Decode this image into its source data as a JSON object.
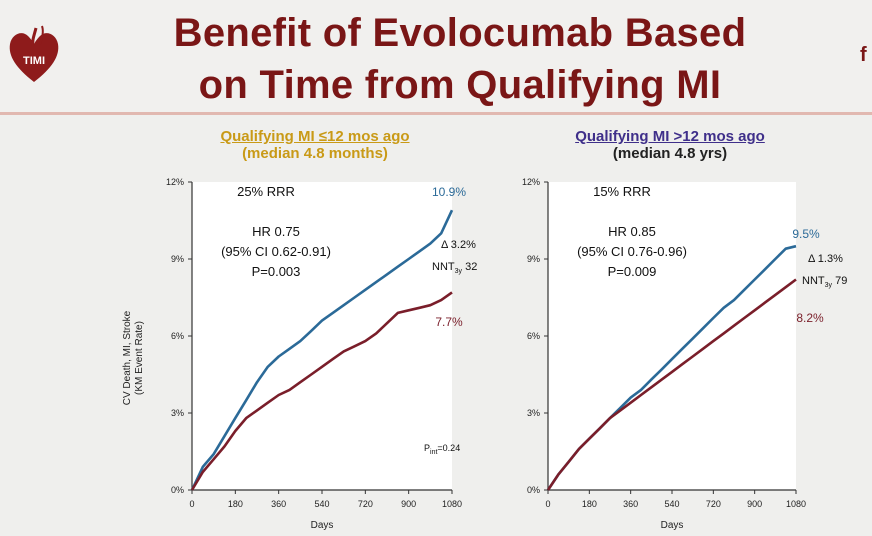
{
  "title": {
    "line1": "Benefit of Evolocumab Based",
    "line2": "on Time from Qualifying MI"
  },
  "logo": {
    "text": "TIMI",
    "icon": "timi-heart-logo"
  },
  "edge_letter": "f",
  "colors": {
    "title": "#7a1616",
    "left_header": "#c99a17",
    "right_header": "#3f2f8a",
    "evolocumab": "#2b6a98",
    "placebo": "#7a1e2a"
  },
  "panels": [
    {
      "header": "Qualifying MI ≤12 mos ago",
      "subheader": "(median 4.8 months)",
      "rrr": "25% RRR",
      "hr": "HR 0.75",
      "ci": "(95% CI 0.62-0.91)",
      "p": "P=0.003",
      "delta": "Δ 3.2%",
      "nnt": "NNT",
      "nnt_sub": "3y",
      "nnt_val": "32",
      "end_blue": "10.9%",
      "end_red": "7.7%",
      "pint_label": "P",
      "pint_sub": "int",
      "pint_val": "=0.24"
    },
    {
      "header": "Qualifying MI >12 mos ago",
      "subheader": "(median 4.8 yrs)",
      "rrr": "15% RRR",
      "hr": "HR 0.85",
      "ci": "(95% CI 0.76-0.96)",
      "p": "P=0.009",
      "delta": "Δ 1.3%",
      "nnt": "NNT",
      "nnt_sub": "3y",
      "nnt_val": "79",
      "end_blue": "9.5%",
      "end_red": "8.2%"
    }
  ],
  "chart_data": [
    {
      "type": "line",
      "xlabel": "Days",
      "ylabel": "CV Death, MI, Stroke (KM Event Rate)",
      "xlim": [
        0,
        1080
      ],
      "ylim": [
        0,
        12
      ],
      "xticks": [
        "0",
        "180",
        "360",
        "540",
        "720",
        "900",
        "1080"
      ],
      "yticks": [
        "0%",
        "3%",
        "6%",
        "9%",
        "12%"
      ],
      "series": [
        {
          "color": "#2b6a98",
          "x": [
            0,
            45,
            90,
            135,
            180,
            225,
            270,
            315,
            360,
            405,
            450,
            495,
            540,
            585,
            630,
            675,
            720,
            765,
            810,
            855,
            900,
            945,
            990,
            1035,
            1080
          ],
          "y": [
            0,
            0.9,
            1.4,
            2.1,
            2.8,
            3.5,
            4.2,
            4.8,
            5.2,
            5.5,
            5.8,
            6.2,
            6.6,
            6.9,
            7.2,
            7.5,
            7.8,
            8.1,
            8.4,
            8.7,
            9.0,
            9.3,
            9.6,
            10.0,
            10.9
          ]
        },
        {
          "color": "#7a1e2a",
          "x": [
            0,
            45,
            90,
            135,
            180,
            225,
            270,
            315,
            360,
            405,
            450,
            495,
            540,
            585,
            630,
            675,
            720,
            765,
            810,
            855,
            900,
            945,
            990,
            1035,
            1080
          ],
          "y": [
            0,
            0.7,
            1.2,
            1.7,
            2.3,
            2.8,
            3.1,
            3.4,
            3.7,
            3.9,
            4.2,
            4.5,
            4.8,
            5.1,
            5.4,
            5.6,
            5.8,
            6.1,
            6.5,
            6.9,
            7.0,
            7.1,
            7.2,
            7.4,
            7.7
          ]
        }
      ]
    },
    {
      "type": "line",
      "xlabel": "Days",
      "ylabel": "",
      "xlim": [
        0,
        1080
      ],
      "ylim": [
        0,
        12
      ],
      "xticks": [
        "0",
        "180",
        "360",
        "540",
        "720",
        "900",
        "1080"
      ],
      "yticks": [
        "0%",
        "3%",
        "6%",
        "9%",
        "12%"
      ],
      "series": [
        {
          "color": "#2b6a98",
          "x": [
            0,
            45,
            90,
            135,
            180,
            225,
            270,
            315,
            360,
            405,
            450,
            495,
            540,
            585,
            630,
            675,
            720,
            765,
            810,
            855,
            900,
            945,
            990,
            1035,
            1080
          ],
          "y": [
            0,
            0.6,
            1.1,
            1.6,
            2.0,
            2.4,
            2.8,
            3.2,
            3.6,
            3.9,
            4.3,
            4.7,
            5.1,
            5.5,
            5.9,
            6.3,
            6.7,
            7.1,
            7.4,
            7.8,
            8.2,
            8.6,
            9.0,
            9.4,
            9.5
          ]
        },
        {
          "color": "#7a1e2a",
          "x": [
            0,
            45,
            90,
            135,
            180,
            225,
            270,
            315,
            360,
            405,
            450,
            495,
            540,
            585,
            630,
            675,
            720,
            765,
            810,
            855,
            900,
            945,
            990,
            1035,
            1080
          ],
          "y": [
            0,
            0.6,
            1.1,
            1.6,
            2.0,
            2.4,
            2.8,
            3.1,
            3.4,
            3.7,
            4.0,
            4.3,
            4.6,
            4.9,
            5.2,
            5.5,
            5.8,
            6.1,
            6.4,
            6.7,
            7.0,
            7.3,
            7.6,
            7.9,
            8.2
          ]
        }
      ]
    }
  ]
}
